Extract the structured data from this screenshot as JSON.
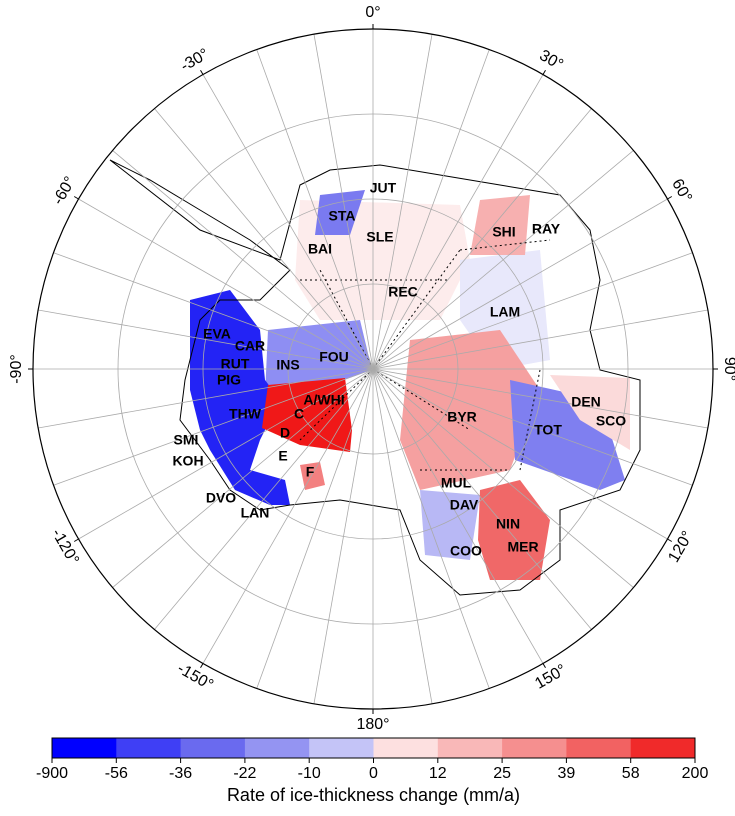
{
  "map": {
    "lon_labels": [
      {
        "value": 0,
        "label": "0°"
      },
      {
        "value": 30,
        "label": "30°"
      },
      {
        "value": 60,
        "label": "60°"
      },
      {
        "value": 90,
        "label": "90°"
      },
      {
        "value": 120,
        "label": "120°"
      },
      {
        "value": 150,
        "label": "150°"
      },
      {
        "value": 180,
        "label": "180°"
      },
      {
        "value": -150,
        "label": "-150°"
      },
      {
        "value": -120,
        "label": "-120°"
      },
      {
        "value": -90,
        "label": "-90°"
      },
      {
        "value": -60,
        "label": "-60°"
      },
      {
        "value": -30,
        "label": "-30°"
      }
    ],
    "regions": [
      "JUT",
      "STA",
      "BAI",
      "SLE",
      "SHI",
      "RAY",
      "REC",
      "LAM",
      "EVA",
      "CAR",
      "FOU",
      "INS",
      "RUT",
      "PIG",
      "A/WHI",
      "THW",
      "C",
      "BYR",
      "DEN",
      "SCO",
      "TOT",
      "D",
      "SMI",
      "KOH",
      "E",
      "F",
      "MUL",
      "DAV",
      "DVO",
      "LAN",
      "NIN",
      "MER",
      "COO"
    ],
    "colorbar": {
      "title": "Rate of ice-thickness change (mm/a)",
      "ticks": [
        -900,
        -56,
        -36,
        -22,
        -10,
        0,
        12,
        25,
        39,
        58,
        200
      ],
      "colors": [
        "#0000ff",
        "#3f3ff5",
        "#6a6aef",
        "#9494f2",
        "#c4c4f7",
        "#fde0e0",
        "#f9b8b8",
        "#f58f8f",
        "#f26262",
        "#f02a2a"
      ]
    }
  }
}
